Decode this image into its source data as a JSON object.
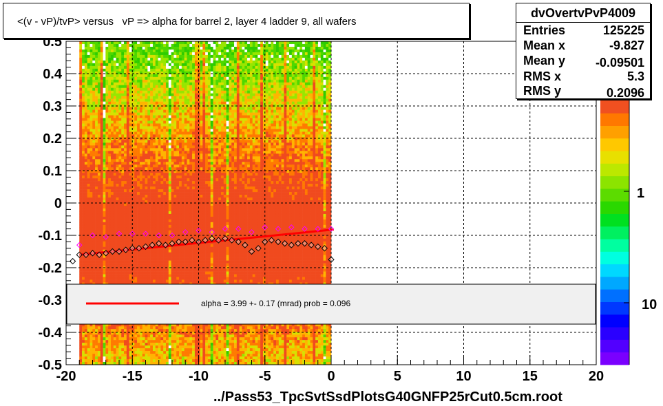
{
  "title": "<(v - vP)/tvP> versus   vP => alpha for barrel 2, layer 4 ladder 9, all wafers",
  "stats": {
    "name": "dvOvertvPvP4009",
    "rows": [
      {
        "label": "Entries",
        "value": "125225"
      },
      {
        "label": "Mean x",
        "value": "-9.827"
      },
      {
        "label": "Mean y",
        "value": "-0.09501"
      },
      {
        "label": "RMS x",
        "value": "5.3"
      },
      {
        "label": "RMS y",
        "value": "0.2096"
      }
    ]
  },
  "footer": "../Pass53_TpcSvtSsdPlotsG40GNFP25rCut0.5cm.root",
  "colors": {
    "fit_line": "#ff0000",
    "profile_markers": "#000000",
    "secondary_markers": "#ff00ff",
    "legend_bg": "#f0f0f0"
  },
  "chart_data": {
    "type": "heatmap",
    "title": "<(v - vP)/tvP> versus   vP => alpha for barrel 2, layer 4 ladder 9, all wafers",
    "xlabel": "",
    "ylabel": "",
    "xlim": [
      -20,
      20
    ],
    "ylim": [
      -0.5,
      0.5
    ],
    "x_ticks": [
      "-20",
      "-15",
      "-10",
      "-5",
      "0",
      "5",
      "10",
      "15",
      "20"
    ],
    "y_ticks": [
      "-0.5",
      "-0.4",
      "-0.3",
      "-0.2",
      "-0.1",
      "0",
      "0.1",
      "0.2",
      "0.3",
      "0.4",
      "0.5"
    ],
    "grid": true,
    "log_z": true,
    "z_tick_labels": [
      "1",
      "10"
    ],
    "occupied_x_range": [
      -19,
      0
    ],
    "profile": {
      "x": [
        -19.5,
        -19,
        -18.5,
        -18,
        -17.5,
        -17,
        -16.5,
        -16,
        -15.5,
        -15,
        -14.5,
        -14,
        -13.5,
        -13,
        -12.5,
        -12,
        -11.5,
        -11,
        -10.5,
        -10,
        -9.5,
        -9,
        -8.5,
        -8,
        -7.5,
        -7,
        -6.5,
        -6,
        -5.5,
        -5,
        -4.5,
        -4,
        -3.5,
        -3,
        -2.5,
        -2,
        -1.5,
        -1,
        -0.5,
        0
      ],
      "y": [
        -0.18,
        -0.16,
        -0.16,
        -0.155,
        -0.16,
        -0.155,
        -0.15,
        -0.15,
        -0.145,
        -0.14,
        -0.14,
        -0.135,
        -0.13,
        -0.125,
        -0.13,
        -0.125,
        -0.12,
        -0.12,
        -0.115,
        -0.12,
        -0.115,
        -0.11,
        -0.115,
        -0.11,
        -0.115,
        -0.12,
        -0.13,
        -0.15,
        -0.14,
        -0.12,
        -0.115,
        -0.12,
        -0.125,
        -0.13,
        -0.125,
        -0.125,
        -0.13,
        -0.135,
        -0.14,
        -0.175
      ]
    },
    "secondary_profile": {
      "x": [
        -19,
        -18,
        -17,
        -16,
        -15,
        -14,
        -13,
        -12,
        -11,
        -10,
        -9,
        -8,
        -7,
        -6,
        -5,
        -4,
        -3,
        -2,
        -1,
        0
      ],
      "y": [
        -0.13,
        -0.1,
        -0.105,
        -0.095,
        -0.095,
        -0.095,
        -0.1,
        -0.1,
        -0.09,
        -0.085,
        -0.09,
        -0.08,
        -0.08,
        -0.09,
        -0.075,
        -0.08,
        -0.075,
        -0.08,
        -0.08,
        -0.08
      ]
    },
    "fit": {
      "x": [
        -19,
        0.2
      ],
      "y": [
        -0.16,
        -0.082
      ],
      "legend_label": "alpha =     3.99 +-  0.17 (mrad) prob = 0.096"
    }
  }
}
